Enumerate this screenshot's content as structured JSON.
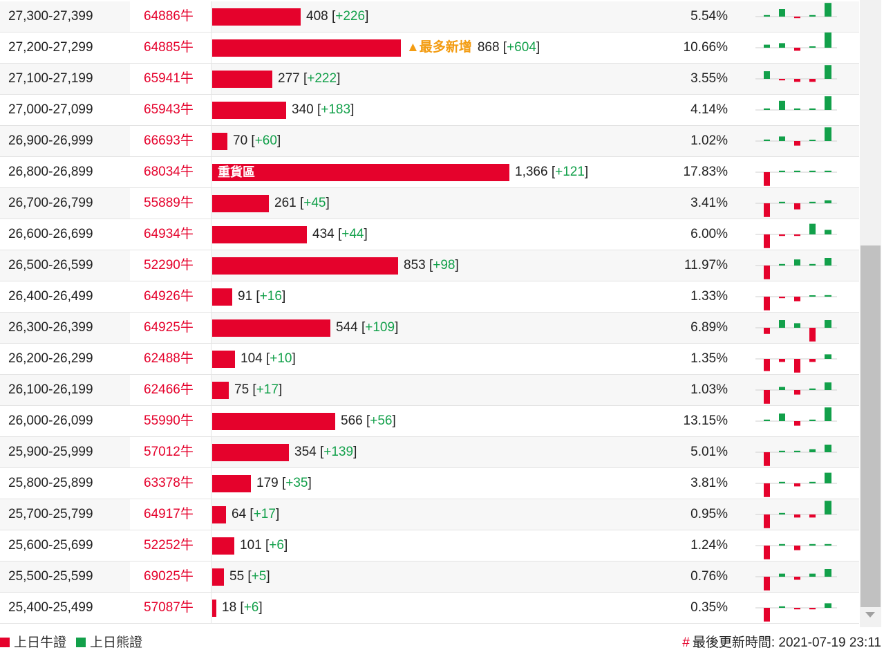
{
  "colors": {
    "bull": "#e5022c",
    "bear": "#12a04a",
    "hot": "#f39c12"
  },
  "rows": [
    {
      "range": "27,300-27,399",
      "code": "64886牛",
      "bar": 408,
      "value": "408",
      "delta": "+226",
      "pct": "5.54%",
      "label": "",
      "hot": "",
      "spark": [
        1,
        5,
        -1,
        1,
        9
      ]
    },
    {
      "range": "27,200-27,299",
      "code": "64885牛",
      "bar": 868,
      "value": "868",
      "delta": "+604",
      "pct": "10.66%",
      "label": "",
      "hot": "▲最多新增",
      "spark": [
        2,
        3,
        -2,
        0,
        10
      ]
    },
    {
      "range": "27,100-27,199",
      "code": "65941牛",
      "bar": 277,
      "value": "277",
      "delta": "+222",
      "pct": "3.55%",
      "label": "",
      "hot": "",
      "spark": [
        5,
        -1,
        -2,
        -2,
        9
      ]
    },
    {
      "range": "27,000-27,099",
      "code": "65943牛",
      "bar": 340,
      "value": "340",
      "delta": "+183",
      "pct": "4.14%",
      "label": "",
      "hot": "",
      "spark": [
        1,
        6,
        1,
        1,
        9
      ]
    },
    {
      "range": "26,900-26,999",
      "code": "66693牛",
      "bar": 70,
      "value": "70",
      "delta": "+60",
      "pct": "1.02%",
      "label": "",
      "hot": "",
      "spark": [
        1,
        3,
        -3,
        0,
        9
      ]
    },
    {
      "range": "26,800-26,899",
      "code": "68034牛",
      "bar": 1366,
      "value": "1,366",
      "delta": "+121",
      "pct": "17.83%",
      "label": "重貨區",
      "hot": "",
      "spark": [
        -9,
        1,
        1,
        1,
        1
      ]
    },
    {
      "range": "26,700-26,799",
      "code": "55889牛",
      "bar": 261,
      "value": "261",
      "delta": "+45",
      "pct": "3.41%",
      "label": "",
      "hot": "",
      "spark": [
        -9,
        1,
        -4,
        1,
        2
      ]
    },
    {
      "range": "26,600-26,699",
      "code": "64934牛",
      "bar": 434,
      "value": "434",
      "delta": "+44",
      "pct": "6.00%",
      "label": "",
      "hot": "",
      "spark": [
        -9,
        -1,
        -1,
        7,
        3
      ]
    },
    {
      "range": "26,500-26,599",
      "code": "52290牛",
      "bar": 853,
      "value": "853",
      "delta": "+98",
      "pct": "11.97%",
      "label": "",
      "hot": "",
      "spark": [
        -9,
        1,
        4,
        1,
        5
      ]
    },
    {
      "range": "26,400-26,499",
      "code": "64926牛",
      "bar": 91,
      "value": "91",
      "delta": "+16",
      "pct": "1.33%",
      "label": "",
      "hot": "",
      "spark": [
        -9,
        -1,
        -3,
        0,
        1
      ]
    },
    {
      "range": "26,300-26,399",
      "code": "64925牛",
      "bar": 544,
      "value": "544",
      "delta": "+109",
      "pct": "6.89%",
      "label": "",
      "hot": "",
      "spark": [
        -4,
        5,
        3,
        -9,
        5
      ]
    },
    {
      "range": "26,200-26,299",
      "code": "62488牛",
      "bar": 104,
      "value": "104",
      "delta": "+10",
      "pct": "1.35%",
      "label": "",
      "hot": "",
      "spark": [
        -8,
        -2,
        -9,
        -2,
        3
      ]
    },
    {
      "range": "26,100-26,199",
      "code": "62466牛",
      "bar": 75,
      "value": "75",
      "delta": "+17",
      "pct": "1.03%",
      "label": "",
      "hot": "",
      "spark": [
        -9,
        2,
        -3,
        1,
        5
      ]
    },
    {
      "range": "26,000-26,099",
      "code": "55990牛",
      "bar": 566,
      "value": "566",
      "delta": "+56",
      "pct": "13.15%",
      "label": "",
      "hot": "",
      "spark": [
        1,
        5,
        -3,
        1,
        9
      ]
    },
    {
      "range": "25,900-25,999",
      "code": "57012牛",
      "bar": 354,
      "value": "354",
      "delta": "+139",
      "pct": "5.01%",
      "label": "",
      "hot": "",
      "spark": [
        -9,
        1,
        1,
        2,
        5
      ]
    },
    {
      "range": "25,800-25,899",
      "code": "63378牛",
      "bar": 179,
      "value": "179",
      "delta": "+35",
      "pct": "3.81%",
      "label": "",
      "hot": "",
      "spark": [
        -9,
        1,
        -2,
        1,
        7
      ]
    },
    {
      "range": "25,700-25,799",
      "code": "64917牛",
      "bar": 64,
      "value": "64",
      "delta": "+17",
      "pct": "0.95%",
      "label": "",
      "hot": "",
      "spark": [
        -9,
        1,
        -2,
        -2,
        9
      ]
    },
    {
      "range": "25,600-25,699",
      "code": "52252牛",
      "bar": 101,
      "value": "101",
      "delta": "+6",
      "pct": "1.24%",
      "label": "",
      "hot": "",
      "spark": [
        -9,
        1,
        -3,
        1,
        1
      ]
    },
    {
      "range": "25,500-25,599",
      "code": "69025牛",
      "bar": 55,
      "value": "55",
      "delta": "+5",
      "pct": "0.76%",
      "label": "",
      "hot": "",
      "spark": [
        -9,
        2,
        -2,
        2,
        5
      ]
    },
    {
      "range": "25,400-25,499",
      "code": "57087牛",
      "bar": 18,
      "value": "18",
      "delta": "+6",
      "pct": "0.35%",
      "label": "",
      "hot": "",
      "spark": [
        -9,
        1,
        -1,
        -1,
        3
      ]
    }
  ],
  "footer": {
    "legend_bull": "上日牛證",
    "legend_bear": "上日熊證",
    "update_hash": "#",
    "update_text": "最後更新時間: 2021-07-19 23:11"
  }
}
